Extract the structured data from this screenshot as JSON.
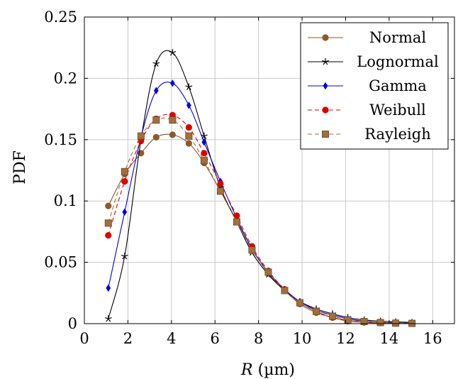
{
  "chart_data": {
    "type": "line",
    "xlabel_var": "R",
    "xlabel_unit": " (µm)",
    "ylabel": "PDF",
    "xlim": [
      0,
      17
    ],
    "ylim": [
      0,
      0.25
    ],
    "xticks": [
      0,
      2,
      4,
      6,
      8,
      10,
      12,
      14,
      16
    ],
    "yticks": [
      0,
      0.05,
      0.1,
      0.15,
      0.2,
      0.25
    ],
    "xtick_labels": [
      "0",
      "2",
      "4",
      "6",
      "8",
      "10",
      "12",
      "14",
      "16"
    ],
    "ytick_labels": [
      "0",
      "0.05",
      "0.1",
      "0.15",
      "0.2",
      "0.25"
    ],
    "grid": true,
    "legend_position": "top-right",
    "series": [
      {
        "name": "Normal",
        "color": "#8b5a2b",
        "marker": "circle",
        "line": "solid",
        "x": [
          1.1,
          1.85,
          2.6,
          3.3,
          4.05,
          4.8,
          5.5,
          6.25,
          7.0,
          7.7,
          8.45,
          9.2,
          9.9,
          10.65,
          11.4,
          12.1,
          12.85,
          13.6,
          14.3,
          15.05
        ],
        "y": [
          0.096,
          0.122,
          0.139,
          0.152,
          0.154,
          0.147,
          0.131,
          0.108,
          0.084,
          0.061,
          0.041,
          0.027,
          0.016,
          0.009,
          0.005,
          0.002,
          0.001,
          0.0005,
          0.0002,
          0.0001
        ]
      },
      {
        "name": "Lognormal",
        "color": "#000000",
        "marker": "star",
        "line": "solid",
        "x": [
          1.1,
          1.85,
          2.6,
          3.3,
          4.05,
          4.8,
          5.5,
          6.25,
          7.0,
          7.7,
          8.45,
          9.2,
          9.9,
          10.65,
          11.4,
          12.1,
          12.85,
          13.6,
          14.3,
          15.05
        ],
        "y": [
          0.004,
          0.055,
          0.15,
          0.212,
          0.221,
          0.193,
          0.153,
          0.111,
          0.083,
          0.058,
          0.04,
          0.027,
          0.018,
          0.012,
          0.008,
          0.005,
          0.003,
          0.002,
          0.0015,
          0.001
        ]
      },
      {
        "name": "Gamma",
        "color": "#0000dd",
        "marker": "diamond",
        "line": "solid",
        "x": [
          1.1,
          1.85,
          2.6,
          3.3,
          4.05,
          4.8,
          5.5,
          6.25,
          7.0,
          7.7,
          8.45,
          9.2,
          9.9,
          10.65,
          11.4,
          12.1,
          12.85,
          13.6,
          14.3,
          15.05
        ],
        "y": [
          0.029,
          0.091,
          0.152,
          0.19,
          0.196,
          0.178,
          0.148,
          0.116,
          0.086,
          0.061,
          0.042,
          0.028,
          0.018,
          0.011,
          0.007,
          0.004,
          0.002,
          0.001,
          0.0007,
          0.0004
        ]
      },
      {
        "name": "Weibull",
        "color": "#e00000",
        "marker": "circle",
        "line": "dashed",
        "x": [
          1.1,
          1.85,
          2.6,
          3.3,
          4.05,
          4.8,
          5.5,
          6.25,
          7.0,
          7.7,
          8.45,
          9.2,
          9.9,
          10.65,
          11.4,
          12.1,
          12.85,
          13.6,
          14.3,
          15.05
        ],
        "y": [
          0.072,
          0.116,
          0.149,
          0.167,
          0.17,
          0.16,
          0.139,
          0.114,
          0.088,
          0.063,
          0.043,
          0.028,
          0.017,
          0.01,
          0.005,
          0.003,
          0.0015,
          0.0007,
          0.0003,
          0.0001
        ]
      },
      {
        "name": "Rayleigh",
        "color": "#a0703a",
        "marker": "square",
        "line": "dashed",
        "x": [
          1.1,
          1.85,
          2.6,
          3.3,
          4.05,
          4.8,
          5.5,
          6.25,
          7.0,
          7.7,
          8.45,
          9.2,
          9.9,
          10.65,
          11.4,
          12.1,
          12.85,
          13.6,
          14.3,
          15.05
        ],
        "y": [
          0.082,
          0.124,
          0.153,
          0.166,
          0.166,
          0.153,
          0.133,
          0.108,
          0.083,
          0.06,
          0.042,
          0.027,
          0.017,
          0.01,
          0.006,
          0.003,
          0.0017,
          0.0009,
          0.0004,
          0.0002
        ]
      }
    ]
  }
}
